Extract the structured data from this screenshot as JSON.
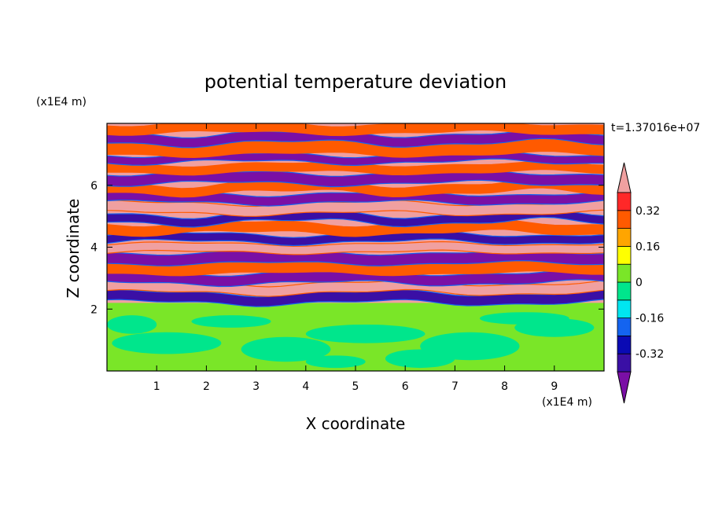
{
  "chart_data": {
    "type": "heatmap",
    "title": "potential temperature deviation",
    "time_label": "t=1.37016e+07",
    "xlabel": "X coordinate",
    "ylabel": "Z coordinate",
    "x_unit": "(x1E4 m)",
    "y_unit": "(x1E4 m)",
    "xlim": [
      0,
      10
    ],
    "ylim": [
      0,
      8
    ],
    "x_ticks": [
      1,
      2,
      3,
      4,
      5,
      6,
      7,
      8,
      9
    ],
    "y_ticks": [
      2,
      4,
      6
    ],
    "colorbar": {
      "levels": [
        -0.4,
        -0.32,
        -0.24,
        -0.16,
        -0.08,
        0,
        0.08,
        0.16,
        0.24,
        0.32,
        0.4
      ],
      "tick_labels": [
        {
          "value": 0.32,
          "label": "0.32"
        },
        {
          "value": 0.16,
          "label": "0.16"
        },
        {
          "value": 0,
          "label": "0"
        },
        {
          "value": -0.16,
          "label": "-0.16"
        },
        {
          "value": -0.32,
          "label": "-0.32"
        }
      ],
      "colors": [
        "#7a0fa5",
        "#3a0fa5",
        "#0a0ab4",
        "#1464f0",
        "#00e6f0",
        "#00e68c",
        "#7ae628",
        "#ffff00",
        "#ffa500",
        "#ff5a00",
        "#ff2828",
        "#f0a0a0"
      ]
    },
    "bands": {
      "z_boundary": 2.2,
      "lower_region": "near 0 to slightly positive (green / light green)",
      "upper_region": "alternating strongly negative (purple) and strongly positive (pink) horizontal layers"
    }
  }
}
